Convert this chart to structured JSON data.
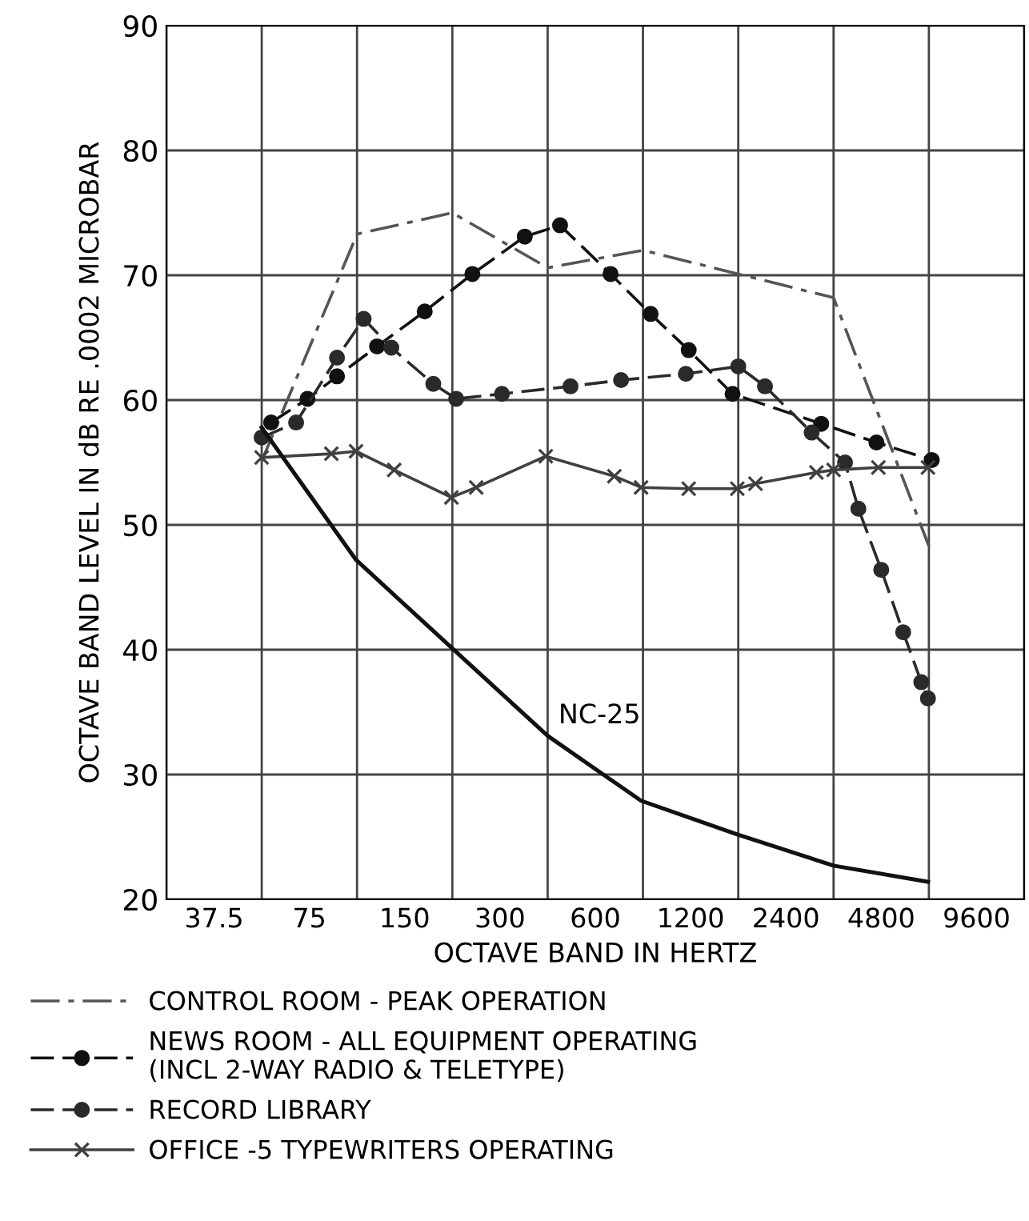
{
  "chart_data": {
    "type": "line",
    "xlabel": "OCTAVE BAND IN HERTZ",
    "ylabel": "OCTAVE BAND LEVEL IN dB RE .0002 MICROBAR",
    "log": "x",
    "xlim": [
      26.52,
      13576.45
    ],
    "ylim": [
      20,
      90
    ],
    "xticks": [
      {
        "value": 26.52,
        "label": null
      },
      37.5,
      {
        "value": 53.03,
        "label": null
      },
      75,
      {
        "value": 106.07,
        "label": null
      },
      150,
      {
        "value": 212.13,
        "label": null
      },
      300,
      {
        "value": 424.26,
        "label": null
      },
      600,
      {
        "value": 848.53,
        "label": null
      },
      1200,
      {
        "value": 1697.06,
        "label": null
      },
      2400,
      {
        "value": 3394.11,
        "label": null
      },
      4800,
      {
        "value": 6788.23,
        "label": null
      },
      9600,
      {
        "value": 13576.45,
        "label": null
      }
    ],
    "yticks": [
      20,
      30,
      40,
      50,
      60,
      70,
      80,
      90
    ],
    "grid": true,
    "legend": "bottom",
    "annotations": [
      "NC-25"
    ],
    "series": [
      {
        "name": "CONTROL ROOM - PEAK OPERATION",
        "color": "#555555",
        "line_style": "dashdot",
        "marker": "none",
        "x": [
          53.0,
          106.1,
          212.1,
          424.3,
          848.5,
          1697,
          3394,
          6788
        ],
        "values": [
          55.1,
          73.3,
          75.0,
          70.6,
          72.0,
          70.1,
          68.2,
          48.3
        ]
      },
      {
        "name": "NEWS ROOM - ALL EQUIPMENT OPERATING\n(INCL 2-WAY RADIO & TELETYPE)",
        "color": "#111111",
        "line_style": "dashed",
        "marker": "circle",
        "x": [
          56.8,
          74.0,
          91.7,
          122.7,
          173.5,
          245.4,
          359.2,
          464.3,
          670.4,
          897.0,
          1183.5,
          1628,
          3102,
          4636,
          6930
        ],
        "values": [
          58.2,
          60.1,
          61.9,
          64.3,
          67.1,
          70.1,
          73.1,
          74.0,
          70.1,
          66.9,
          64.0,
          60.5,
          58.1,
          56.6,
          55.2
        ]
      },
      {
        "name": "RECORD LIBRARY",
        "color": "#2a2a2a",
        "line_style": "dashed",
        "marker": "circle",
        "x": [
          53.0,
          68.1,
          91.7,
          111.3,
          136.1,
          184.7,
          218.1,
          304.2,
          501.0,
          723.5,
          1159,
          1697,
          2061,
          2894,
          3689,
          4064,
          4800,
          5630,
          6423,
          6742
        ],
        "values": [
          57.0,
          58.2,
          63.4,
          66.5,
          64.2,
          61.3,
          60.1,
          60.5,
          61.1,
          61.6,
          62.1,
          62.7,
          61.1,
          57.4,
          55.0,
          51.3,
          46.4,
          41.4,
          37.4,
          36.1
        ]
      },
      {
        "name": "OFFICE -5 TYPEWRITERS OPERATING",
        "color": "#404040",
        "line_style": "solid",
        "marker": "cross",
        "x": [
          53.0,
          88.0,
          105.3,
          139.0,
          210.7,
          252.3,
          418.5,
          689.2,
          836.9,
          1183.5,
          1685,
          1923,
          2996,
          3394,
          4701,
          6742
        ],
        "values": [
          55.4,
          55.7,
          55.9,
          54.4,
          52.2,
          53.0,
          55.5,
          53.9,
          53.0,
          52.9,
          52.9,
          53.3,
          54.2,
          54.4,
          54.6,
          54.6
        ]
      },
      {
        "color": "#111111",
        "line_style": "solid",
        "marker": "none",
        "x": [
          53.0,
          105.3,
          212.1,
          424.3,
          836.9,
          1685,
          3394,
          6742
        ],
        "values": [
          57.8,
          47.2,
          40.1,
          33.1,
          27.9,
          25.2,
          22.7,
          21.4
        ]
      }
    ]
  }
}
